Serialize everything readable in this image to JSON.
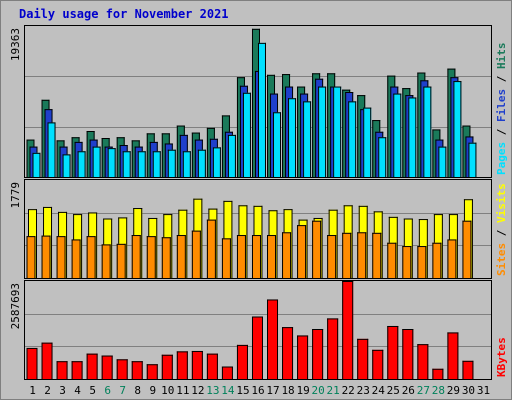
{
  "chart_data": [
    {
      "type": "bar",
      "title": "Daily usage for November 2021",
      "categories": [
        "1",
        "2",
        "3",
        "4",
        "5",
        "6",
        "7",
        "8",
        "9",
        "10",
        "11",
        "12",
        "13",
        "14",
        "15",
        "16",
        "17",
        "18",
        "19",
        "20",
        "21",
        "22",
        "23",
        "24",
        "25",
        "26",
        "27",
        "28",
        "29",
        "30",
        "31"
      ],
      "weekend_days": [
        "6",
        "7",
        "13",
        "14",
        "20",
        "21",
        "27",
        "28"
      ],
      "ymax_label": "19363",
      "ylim": [
        0,
        19363
      ],
      "legend": [
        "Pages",
        "Files",
        "Hits"
      ],
      "series": [
        {
          "name": "Hits",
          "color": "#1a7a5a",
          "values": [
            4800,
            9900,
            4700,
            5100,
            5900,
            5000,
            5100,
            4700,
            5600,
            5600,
            6600,
            5700,
            6300,
            7900,
            12800,
            19000,
            13100,
            13200,
            11600,
            13300,
            13300,
            11200,
            10500,
            7300,
            13000,
            11400,
            13400,
            6100,
            13900,
            6600,
            0
          ]
        },
        {
          "name": "Files",
          "color": "#1f3fcc",
          "values": [
            3900,
            8700,
            3900,
            4500,
            4800,
            3900,
            4100,
            3900,
            4500,
            4300,
            5400,
            4800,
            4900,
            5800,
            11700,
            13600,
            10700,
            11600,
            10700,
            12600,
            11600,
            10900,
            8700,
            5800,
            11600,
            10500,
            12400,
            4800,
            12800,
            5200,
            0
          ]
        },
        {
          "name": "Pages",
          "color": "#00e0ff",
          "values": [
            3100,
            7000,
            2900,
            3300,
            3900,
            3700,
            3300,
            3300,
            3300,
            3500,
            3300,
            3500,
            3800,
            5400,
            10800,
            17200,
            8300,
            10100,
            9700,
            11600,
            11600,
            9700,
            8900,
            5100,
            10700,
            10200,
            11600,
            3900,
            12300,
            4400,
            0
          ]
        }
      ]
    },
    {
      "type": "bar",
      "ymax_label": "1779",
      "ylim": [
        0,
        1779
      ],
      "legend": [
        "Sites",
        "Visits"
      ],
      "series": [
        {
          "name": "Visits",
          "color": "#ffff00",
          "values": [
            1250,
            1290,
            1200,
            1160,
            1190,
            1080,
            1100,
            1270,
            1090,
            1160,
            1240,
            1440,
            1260,
            1400,
            1320,
            1310,
            1230,
            1250,
            1060,
            1090,
            1240,
            1320,
            1310,
            1210,
            1110,
            1080,
            1070,
            1160,
            1160,
            1430,
            0
          ]
        },
        {
          "name": "Sites",
          "color": "#ff8c00",
          "values": [
            760,
            770,
            760,
            700,
            760,
            610,
            620,
            780,
            760,
            740,
            780,
            860,
            1060,
            720,
            780,
            780,
            780,
            830,
            960,
            1040,
            780,
            820,
            830,
            820,
            640,
            580,
            580,
            640,
            700,
            1040,
            0
          ]
        }
      ]
    },
    {
      "type": "bar",
      "ymax_label": "2587693",
      "ylim": [
        0,
        2587693
      ],
      "legend": [
        "KBytes"
      ],
      "series": [
        {
          "name": "KBytes",
          "color": "#ff0000",
          "values": [
            820000,
            960000,
            470000,
            470000,
            670000,
            620000,
            520000,
            470000,
            390000,
            640000,
            730000,
            740000,
            670000,
            330000,
            900000,
            1650000,
            2100000,
            1370000,
            1150000,
            1320000,
            1600000,
            2587693,
            1060000,
            770000,
            1400000,
            1320000,
            920000,
            270000,
            1230000,
            480000,
            0
          ]
        }
      ]
    }
  ]
}
